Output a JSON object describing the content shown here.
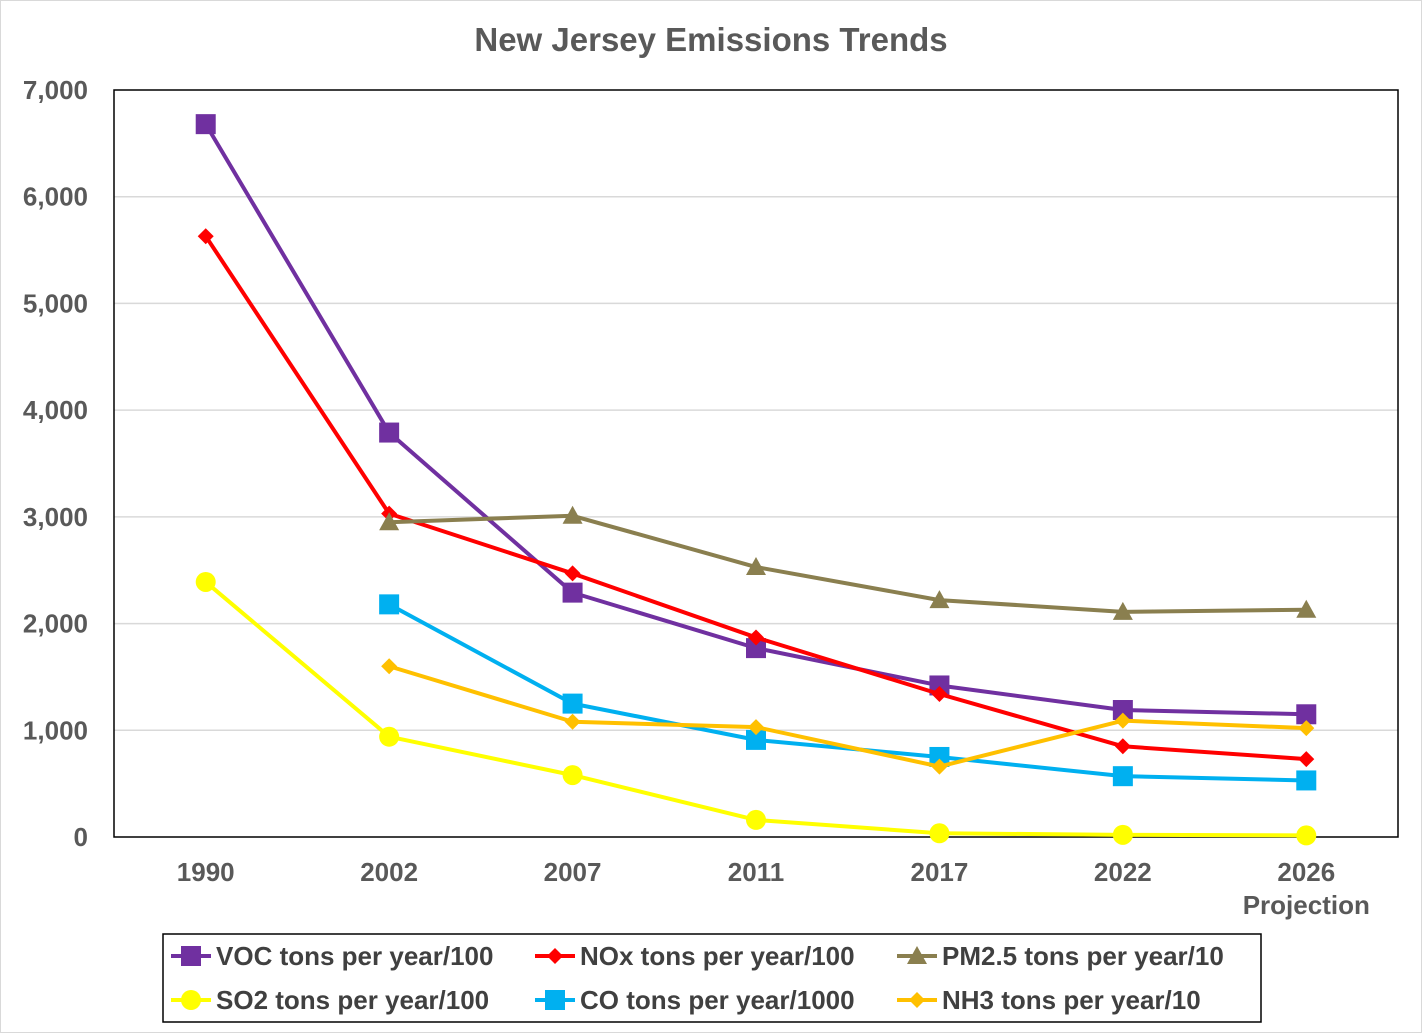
{
  "chart_data": {
    "type": "line",
    "title": "New Jersey Emissions Trends",
    "xlabel": "",
    "ylabel": "",
    "categories": [
      "1990",
      "2002",
      "2007",
      "2011",
      "2017",
      "2022",
      "2026"
    ],
    "category_sublabels": [
      "",
      "",
      "",
      "",
      "",
      "",
      "Projection"
    ],
    "ylim": [
      0,
      7000
    ],
    "yticks": [
      0,
      1000,
      2000,
      3000,
      4000,
      5000,
      6000,
      7000
    ],
    "ytick_labels": [
      "0",
      "1,000",
      "2,000",
      "3,000",
      "4,000",
      "5,000",
      "6,000",
      "7,000"
    ],
    "grid": true,
    "legend_position": "bottom",
    "series": [
      {
        "name": "VOC tons per year/100",
        "color": "#7030a0",
        "marker": "square",
        "values": [
          6680,
          3790,
          2290,
          1770,
          1420,
          1190,
          1150
        ]
      },
      {
        "name": "NOx tons per year/100",
        "color": "#ff0000",
        "marker": "diamond",
        "values": [
          5630,
          3030,
          2470,
          1870,
          1340,
          850,
          730
        ]
      },
      {
        "name": "PM2.5 tons per year/10",
        "color": "#8a7f4f",
        "marker": "triangle",
        "values": [
          null,
          2950,
          3010,
          2530,
          2220,
          2110,
          2130
        ]
      },
      {
        "name": "SO2 tons per year/100",
        "color": "#ffff00",
        "marker": "circle",
        "values": [
          2390,
          940,
          580,
          160,
          35,
          20,
          15
        ]
      },
      {
        "name": "CO tons per year/1000",
        "color": "#00b0f0",
        "marker": "square",
        "values": [
          null,
          2180,
          1250,
          910,
          750,
          570,
          530
        ]
      },
      {
        "name": "NH3 tons per year/10",
        "color": "#ffc000",
        "marker": "diamond",
        "values": [
          null,
          1600,
          1080,
          1030,
          660,
          1090,
          1020
        ]
      }
    ]
  }
}
